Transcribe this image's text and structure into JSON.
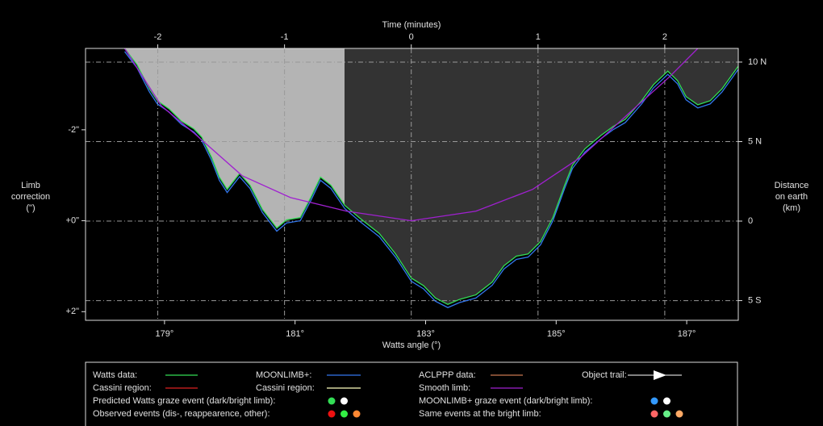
{
  "chart_data": {
    "type": "line",
    "xlabel": "Watts angle (°)",
    "x2label": "Time (minutes)",
    "ylabel": [
      "Limb",
      "correction",
      "(\")"
    ],
    "y2label": [
      "Distance",
      "on earth",
      "(km)"
    ],
    "xlim": [
      177.79,
      187.79
    ],
    "xticks": [
      {
        "value": 179,
        "label": "179°"
      },
      {
        "value": 181,
        "label": "181°"
      },
      {
        "value": 183,
        "label": "183°"
      },
      {
        "value": 185,
        "label": "185°"
      },
      {
        "value": 187,
        "label": "187°"
      }
    ],
    "x2lim": [
      -2.57,
      2.58
    ],
    "x2ticks": [
      -2,
      -1,
      0,
      1,
      2
    ],
    "ylim": [
      2.19,
      -3.79
    ],
    "yticks": [
      {
        "value": -2,
        "label": "-2\""
      },
      {
        "value": 0,
        "label": "+0\""
      },
      {
        "value": 2,
        "label": "+2\""
      }
    ],
    "y2lim": [
      -6.24,
      10.86
    ],
    "y2ticks": [
      {
        "value": 10,
        "label": "10 N"
      },
      {
        "value": 5,
        "label": "5 N"
      },
      0,
      {
        "value": -5,
        "label": "5 S"
      }
    ],
    "grid": true,
    "regions": [
      {
        "xlim": [
          177.79,
          181.76
        ],
        "color": "#b4b4b4"
      },
      {
        "xlim": [
          181.76,
          187.79
        ],
        "color": "#333333"
      }
    ],
    "series": [
      {
        "name": "Watts data:",
        "color": "#33dd55",
        "x": [
          178.39,
          178.58,
          178.77,
          178.89,
          179.07,
          179.26,
          179.45,
          179.57,
          179.72,
          179.84,
          179.96,
          180.15,
          180.31,
          180.5,
          180.72,
          180.87,
          181.08,
          181.24,
          181.39,
          181.55,
          181.76,
          181.98,
          182.29,
          182.54,
          182.78,
          182.97,
          183.15,
          183.34,
          183.52,
          183.77,
          184.02,
          184.2,
          184.39,
          184.57,
          184.76,
          184.95,
          185.13,
          185.25,
          185.44,
          185.69,
          185.87,
          186.06,
          186.31,
          186.49,
          186.71,
          186.86,
          186.99,
          187.17,
          187.36,
          187.54,
          187.79
        ],
        "values": [
          -3.79,
          -3.43,
          -2.9,
          -2.64,
          -2.46,
          -2.19,
          -2.02,
          -1.84,
          -1.4,
          -0.96,
          -0.69,
          -1.04,
          -0.78,
          -0.25,
          0.16,
          -0.02,
          -0.07,
          -0.51,
          -0.96,
          -0.78,
          -0.34,
          -0.07,
          0.28,
          0.73,
          1.26,
          1.43,
          1.7,
          1.84,
          1.73,
          1.63,
          1.35,
          0.99,
          0.78,
          0.73,
          0.46,
          -0.07,
          -0.78,
          -1.22,
          -1.58,
          -1.88,
          -2.07,
          -2.23,
          -2.64,
          -2.99,
          -3.29,
          -3.08,
          -2.73,
          -2.55,
          -2.64,
          -2.9,
          -3.4
        ]
      },
      {
        "name": "MOONLIMB+:",
        "color": "#3377ee",
        "x": [
          178.39,
          178.58,
          178.77,
          178.89,
          179.07,
          179.26,
          179.45,
          179.57,
          179.72,
          179.84,
          179.96,
          180.15,
          180.31,
          180.5,
          180.72,
          180.87,
          181.08,
          181.24,
          181.39,
          181.55,
          181.76,
          181.98,
          182.29,
          182.54,
          182.78,
          182.97,
          183.15,
          183.34,
          183.52,
          183.77,
          184.02,
          184.2,
          184.39,
          184.57,
          184.76,
          184.95,
          185.13,
          185.25,
          185.44,
          185.69,
          185.87,
          186.06,
          186.31,
          186.49,
          186.71,
          186.86,
          186.99,
          187.17,
          187.36,
          187.54,
          187.79
        ],
        "values": [
          -3.72,
          -3.36,
          -2.83,
          -2.57,
          -2.39,
          -2.12,
          -1.95,
          -1.77,
          -1.33,
          -0.89,
          -0.62,
          -0.97,
          -0.71,
          -0.18,
          0.23,
          0.05,
          0,
          -0.44,
          -0.89,
          -0.71,
          -0.27,
          0,
          0.35,
          0.8,
          1.33,
          1.5,
          1.77,
          1.91,
          1.8,
          1.7,
          1.42,
          1.06,
          0.85,
          0.8,
          0.53,
          0,
          -0.71,
          -1.15,
          -1.51,
          -1.81,
          -2,
          -2.16,
          -2.57,
          -2.92,
          -3.22,
          -3.01,
          -2.66,
          -2.48,
          -2.57,
          -2.83,
          -3.33
        ]
      },
      {
        "name": "Smooth limb:",
        "color": "#a020d0",
        "x": [
          178.39,
          178.95,
          179.45,
          180.19,
          180.93,
          181.79,
          182.78,
          183.77,
          184.64,
          185.38,
          186.12,
          186.74,
          187.17
        ],
        "values": [
          -3.79,
          -2.53,
          -1.93,
          -0.99,
          -0.51,
          -0.21,
          0,
          -0.21,
          -0.69,
          -1.4,
          -2.37,
          -3.17,
          -3.79
        ]
      }
    ],
    "legend_extra": [
      {
        "label": "ACLPPP data:",
        "color": "#c87850"
      },
      {
        "label": "Object trail:",
        "color": "#ffffff"
      },
      {
        "label": "Cassini region:",
        "color": "#dd2222"
      },
      {
        "label": "Cassini region:",
        "color": "#ffffc0"
      },
      {
        "label": "Predicted Watts graze event (dark/bright limb):",
        "colors": [
          "#33dd55",
          "#ffffff"
        ]
      },
      {
        "label": "MOONLIMB+ graze event (dark/bright limb):",
        "colors": [
          "#3399ff",
          "#ffffff"
        ]
      },
      {
        "label": "Observed events (dis-, reappearence, other):",
        "colors": [
          "#ee1111",
          "#33ee44",
          "#ff8833"
        ]
      },
      {
        "label": "Same events at the bright limb:",
        "colors": [
          "#ff6666",
          "#66ee88",
          "#ffaa66"
        ]
      }
    ]
  }
}
